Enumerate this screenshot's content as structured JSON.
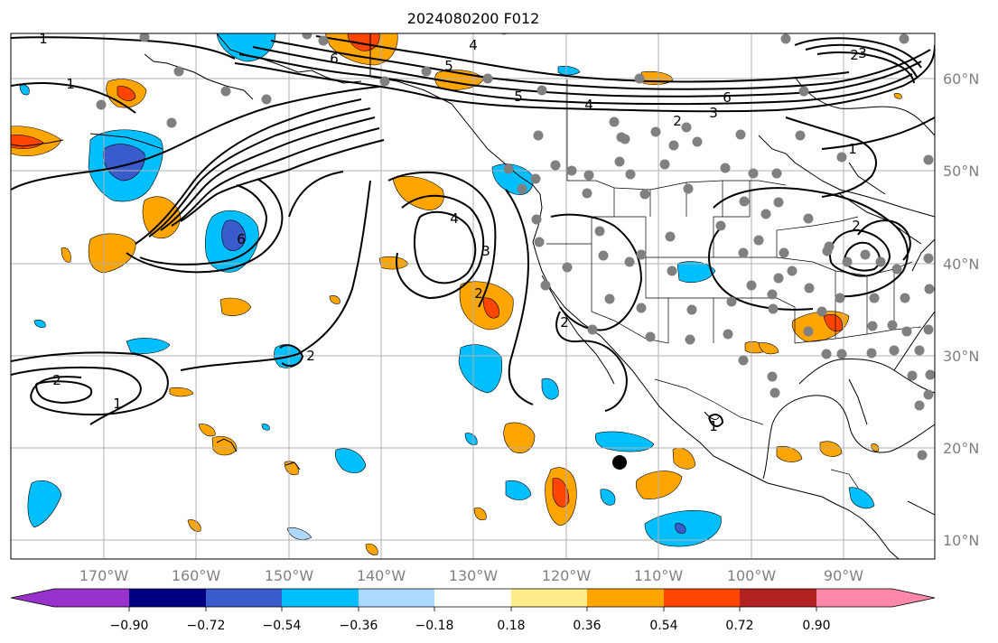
{
  "figure": {
    "title": "2024080200 F012",
    "lon_ticks": [
      "170°W",
      "160°W",
      "150°W",
      "140°W",
      "130°W",
      "120°W",
      "110°W",
      "100°W",
      "90°W"
    ],
    "lat_ticks": [
      "60°N",
      "50°N",
      "40°N",
      "30°N",
      "20°N",
      "10°N"
    ],
    "contour_labels": [
      "1",
      "1",
      "6",
      "4",
      "5",
      "5",
      "4",
      "2",
      "3",
      "6",
      "1",
      "2",
      "6",
      "4",
      "3",
      "2",
      "2",
      "2",
      "1",
      "2",
      "1",
      "3",
      "2"
    ],
    "colorbar": {
      "tick_labels": [
        "−0.90",
        "−0.72",
        "−0.54",
        "−0.36",
        "−0.18",
        "0.18",
        "0.36",
        "0.54",
        "0.72",
        "0.90"
      ],
      "colors": [
        "#9932cc",
        "#000080",
        "#3a5bcc",
        "#00bfff",
        "#add8ff",
        "#ffffff",
        "#ffec8b",
        "#ffa500",
        "#ff4500",
        "#b22222",
        "#ff88aa"
      ]
    },
    "colors": {
      "neg_light": "#add8ff",
      "neg_mid": "#00bfff",
      "neg_dark": "#3a5bcc",
      "pos_light": "#ffec8b",
      "pos_mid": "#ffa500",
      "pos_dark": "#ff4500",
      "station_dot": "#808080",
      "grid": "#b0b0b0"
    }
  }
}
